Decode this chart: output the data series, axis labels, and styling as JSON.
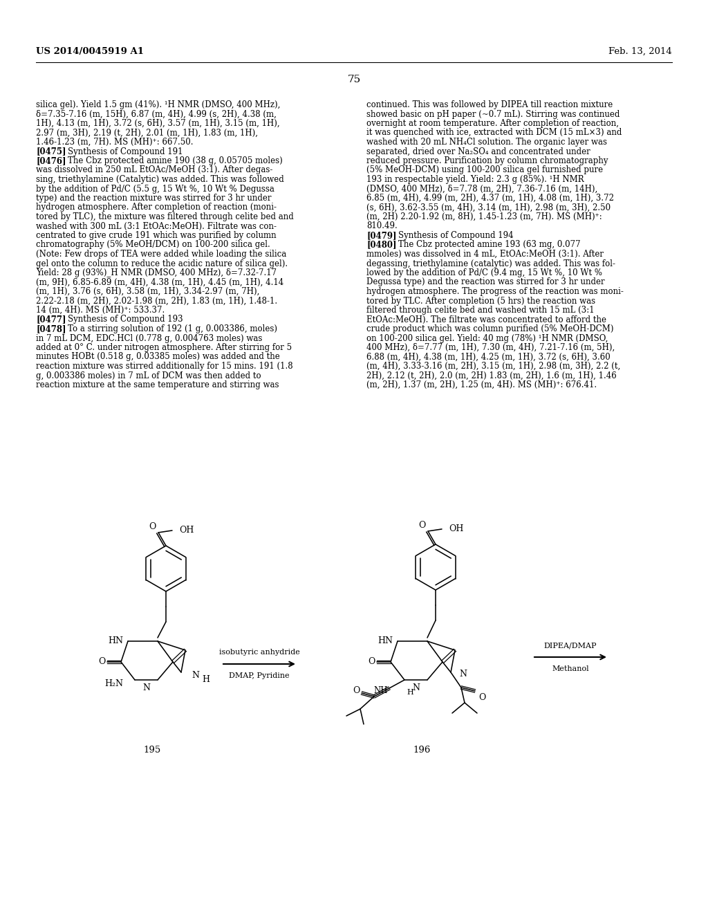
{
  "background_color": "#ffffff",
  "page_header_left": "US 2014/0045919 A1",
  "page_header_right": "Feb. 13, 2014",
  "page_number": "75",
  "left_column_text": [
    "silica gel). Yield 1.5 gm (41%). ¹H NMR (DMSO, 400 MHz),",
    "δ=7.35-7.16 (m, 15H), 6.87 (m, 4H), 4.99 (s, 2H), 4.38 (m,",
    "1H), 4.13 (m, 1H), 3.72 (s, 6H), 3.57 (m, 1H), 3.15 (m, 1H),",
    "2.97 (m, 3H), 2.19 (t, 2H), 2.01 (m, 1H), 1.83 (m, 1H),",
    "1.46-1.23 (m, 7H). MS (MH)⁺: 667.50.",
    "[0475]    Synthesis of Compound 191",
    "[0476]    The Cbz protected amine 190 (38 g, 0.05705 moles)",
    "was dissolved in 250 mL EtOAc/MeOH (3:1). After degas-",
    "sing, triethylamine (Catalytic) was added. This was followed",
    "by the addition of Pd/C (5.5 g, 15 Wt %, 10 Wt % Degussa",
    "type) and the reaction mixture was stirred for 3 hr under",
    "hydrogen atmosphere. After completion of reaction (moni-",
    "tored by TLC), the mixture was filtered through celite bed and",
    "washed with 300 mL (3:1 EtOAc:MeOH). Filtrate was con-",
    "centrated to give crude 191 which was purified by column",
    "chromatography (5% MeOH/DCM) on 100-200 silica gel.",
    "(Note: Few drops of TEA were added while loading the silica",
    "gel onto the column to reduce the acidic nature of silica gel).",
    "Yield: 28 g (93%)_H NMR (DMSO, 400 MHz), δ=7.32-7.17",
    "(m, 9H), 6.85-6.89 (m, 4H), 4.38 (m, 1H), 4.45 (m, 1H), 4.14",
    "(m, 1H), 3.76 (s, 6H), 3.58 (m, 1H), 3.34-2.97 (m, 7H),",
    "2.22-2.18 (m, 2H), 2.02-1.98 (m, 2H), 1.83 (m, 1H), 1.48-1.",
    "14 (m, 4H). MS (MH)⁺: 533.37.",
    "[0477]    Synthesis of Compound 193",
    "[0478]    To a stirring solution of 192 (1 g, 0.003386, moles)",
    "in 7 mL DCM, EDC.HCl (0.778 g, 0.004763 moles) was",
    "added at 0° C. under nitrogen atmosphere. After stirring for 5",
    "minutes HOBt (0.518 g, 0.03385 moles) was added and the",
    "reaction mixture was stirred additionally for 15 mins. 191 (1.8",
    "g, 0.003386 moles) in 7 mL of DCM was then added to",
    "reaction mixture at the same temperature and stirring was"
  ],
  "right_column_text": [
    "continued. This was followed by DIPEA till reaction mixture",
    "showed basic on pH paper (~0.7 mL). Stirring was continued",
    "overnight at room temperature. After completion of reaction,",
    "it was quenched with ice, extracted with DCM (15 mL×3) and",
    "washed with 20 mL NH₄Cl solution. The organic layer was",
    "separated, dried over Na₂SO₄ and concentrated under",
    "reduced pressure. Purification by column chromatography",
    "(5% MeOH-DCM) using 100-200 silica gel furnished pure",
    "193 in respectable yield. Yield: 2.3 g (85%). ¹H NMR",
    "(DMSO, 400 MHz), δ=7.78 (m, 2H), 7.36-7.16 (m, 14H),",
    "6.85 (m, 4H), 4.99 (m, 2H), 4.37 (m, 1H), 4.08 (m, 1H), 3.72",
    "(s, 6H), 3.62-3.55 (m, 4H), 3.14 (m, 1H), 2.98 (m, 3H), 2.50",
    "(m, 2H) 2.20-1.92 (m, 8H), 1.45-1.23 (m, 7H). MS (MH)⁺:",
    "810.49.",
    "[0479]    Synthesis of Compound 194",
    "[0480]    The Cbz protected amine 193 (63 mg, 0.077",
    "mmoles) was dissolved in 4 mL, EtOAc:MeOH (3:1). After",
    "degassing, triethylamine (catalytic) was added. This was fol-",
    "lowed by the addition of Pd/C (9.4 mg, 15 Wt %, 10 Wt %",
    "Degussa type) and the reaction was stirred for 3 hr under",
    "hydrogen atmosphere. The progress of the reaction was moni-",
    "tored by TLC. After completion (5 hrs) the reaction was",
    "filtered through celite bed and washed with 15 mL (3:1",
    "EtOAc:MeOH). The filtrate was concentrated to afford the",
    "crude product which was column purified (5% MeOH-DCM)",
    "on 100-200 silica gel. Yield: 40 mg (78%) ¹H NMR (DMSO,",
    "400 MHz), δ=7.77 (m, 1H), 7.30 (m, 4H), 7.21-7.16 (m, 5H),",
    "6.88 (m, 4H), 4.38 (m, 1H), 4.25 (m, 1H), 3.72 (s, 6H), 3.60",
    "(m, 4H), 3.33-3.16 (m, 2H), 3.15 (m, 1H), 2.98 (m, 3H), 2.2 (t,",
    "2H), 2.12 (t, 2H), 2.0 (m, 2H) 1.83 (m, 2H), 1.6 (m, 1H), 1.46",
    "(m, 2H), 1.37 (m, 2H), 1.25 (m, 4H). MS (MH)⁺: 676.41."
  ],
  "compound195_label": "195",
  "compound196_label": "196",
  "reagent1_line1": "isobutyric anhydride",
  "reagent1_line2": "DMAP, Pyridine",
  "reagent2_line1": "DIPEA/DMAP",
  "reagent2_line2": "Methanol"
}
